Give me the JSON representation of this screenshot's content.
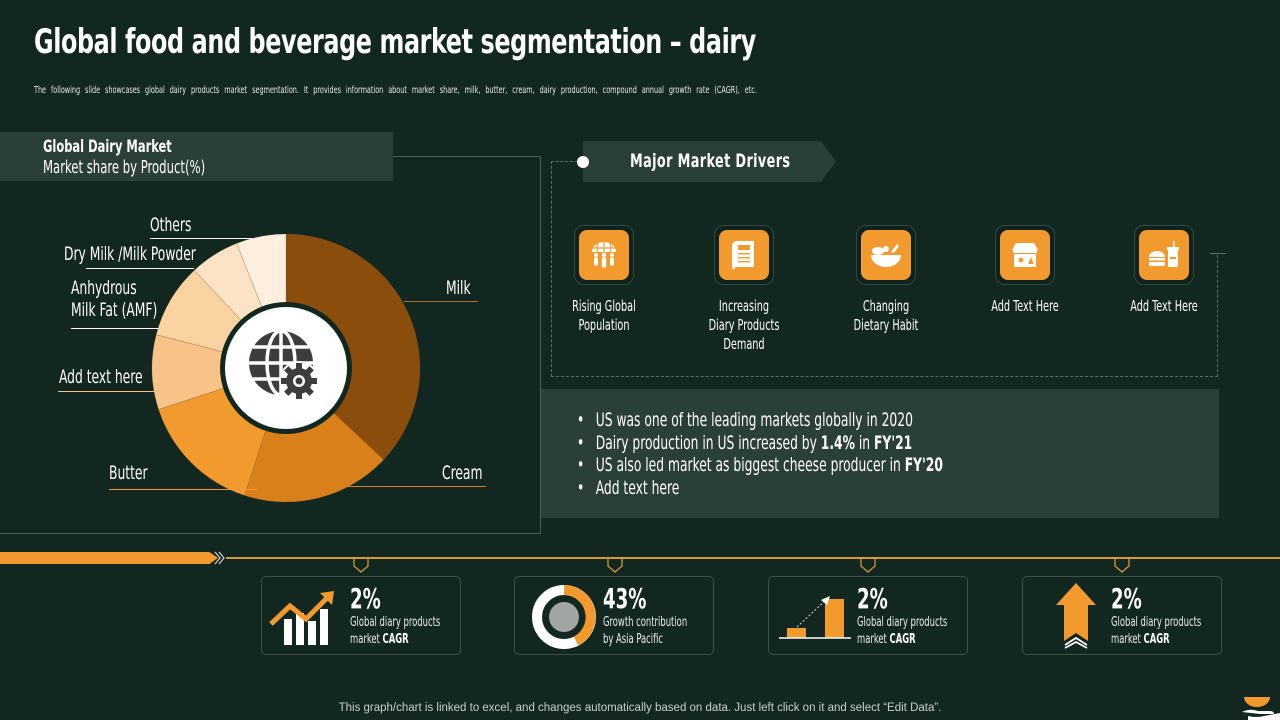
{
  "header": {
    "title": "Global food and beverage market segmentation – dairy",
    "subtitle": "The following slide showcases global dairy products market segmentation. It provides information about market share, milk, butter, cream, dairy production, compound annual growth rate (CAGR), etc."
  },
  "left_panel": {
    "heading": "Global Dairy Market",
    "subheading": "Market share by Product(%)",
    "center_icon": "globe-gear-icon"
  },
  "chart_data": {
    "type": "pie",
    "variant": "donut",
    "title": "Global Dairy Market",
    "subtitle": "Market share by Product(%)",
    "categories": [
      "Milk",
      "Cream",
      "Butter",
      "Add text here",
      "Anhydrous Milk Fat (AMF)",
      "Dry Milk /Milk Powder",
      "Others"
    ],
    "values": [
      37,
      18,
      15,
      9,
      9,
      6,
      6
    ],
    "colors": [
      "#8a4d0b",
      "#d9801b",
      "#f29a2e",
      "#f8c387",
      "#fad3a3",
      "#fce3c6",
      "#fdefe0"
    ],
    "start_angle_deg": 0,
    "direction": "clockwise",
    "legend_position": "callout-labels",
    "unit": "%"
  },
  "pie_labels": {
    "milk": "Milk",
    "cream": "Cream",
    "butter": "Butter",
    "add_text": "Add text here",
    "amf_line1": "Anhydrous",
    "amf_line2": "Milk Fat (AMF)",
    "dry_milk": "Dry Milk /Milk Powder",
    "others": "Others"
  },
  "drivers": {
    "heading": "Major Market Drivers",
    "items": [
      {
        "label": "Rising  Global\nPopulation",
        "icon": "population-globe-icon"
      },
      {
        "label": "Increasing\nDiary  Products\nDemand",
        "icon": "book-icon"
      },
      {
        "label": "Changing\nDietary  Habit",
        "icon": "food-bowl-icon"
      },
      {
        "label": "Add Text Here",
        "icon": "store-icon"
      },
      {
        "label": "Add Text Here",
        "icon": "burger-drink-icon"
      }
    ]
  },
  "bullets": {
    "items": [
      {
        "text": "US was one of the leading markets globally in 2020",
        "bold1": "",
        "mid": "",
        "bold2": ""
      },
      {
        "text": "Dairy production in US increased by ",
        "bold1": "1.4%",
        "mid": " in ",
        "bold2": "FY'21"
      },
      {
        "text": "US also led market as biggest cheese producer in ",
        "bold1": "FY'20",
        "mid": "",
        "bold2": ""
      },
      {
        "text": "Add text here",
        "bold1": "",
        "mid": "",
        "bold2": ""
      }
    ]
  },
  "stats": [
    {
      "value": "2%",
      "desc_line1": "Global  diary products",
      "desc_line2_prefix": "market ",
      "desc_line2_bold": "CAGR",
      "icon": "growth-chart-icon"
    },
    {
      "value": "43%",
      "desc_line1": "Growth contribution",
      "desc_line2_prefix": "by Asia Pacific",
      "desc_line2_bold": "",
      "icon": "donut-progress-icon"
    },
    {
      "value": "2%",
      "desc_line1": "Global  diary products",
      "desc_line2_prefix": "market ",
      "desc_line2_bold": "CAGR",
      "icon": "bar-growth-icon"
    },
    {
      "value": "2%",
      "desc_line1": "Global  diary products",
      "desc_line2_prefix": "market ",
      "desc_line2_bold": "CAGR",
      "icon": "up-arrow-icon"
    }
  ],
  "footer": {
    "note": "This graph/chart is linked to excel,  and changes automatically based on data. Just left click on it and select “Edit Data”."
  },
  "colors": {
    "background": "#112720",
    "panel": "#2a3f38",
    "accent": "#f29a2e",
    "line": "#d39a3a"
  }
}
